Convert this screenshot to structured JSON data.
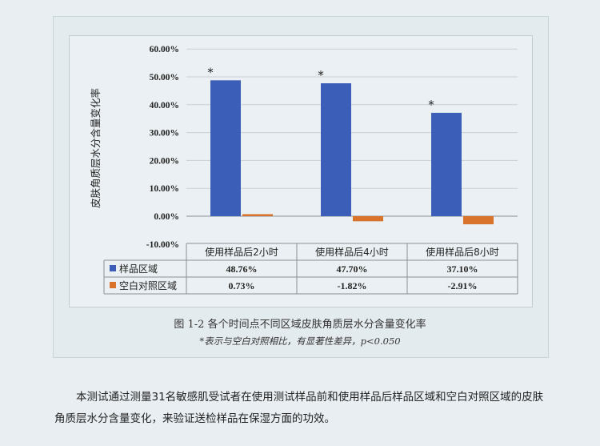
{
  "chart_data": {
    "type": "bar",
    "ylabel": "皮肤角质层水分含量变化率",
    "ylim": [
      -0.1,
      0.6
    ],
    "yticks": [
      "60.00%",
      "50.00%",
      "40.00%",
      "30.00%",
      "20.00%",
      "10.00%",
      "0.00%",
      "-10.00%"
    ],
    "categories": [
      "使用样品后2小时",
      "使用样品后4小时",
      "使用样品后8小时"
    ],
    "series": [
      {
        "name": "样品区域",
        "color": "#3b5fb8",
        "values": [
          0.4876,
          0.477,
          0.371
        ],
        "labels": [
          "48.76%",
          "47.70%",
          "37.10%"
        ]
      },
      {
        "name": "空白对照区域",
        "color": "#d9732b",
        "values": [
          0.0073,
          -0.0182,
          -0.0291
        ],
        "labels": [
          "0.73%",
          "-1.82%",
          "-2.91%"
        ]
      }
    ],
    "annotations": [
      "*",
      "*",
      "*"
    ],
    "grid": true,
    "legend": "data-table"
  },
  "caption": {
    "title": "图 1-2  各个时间点不同区域皮肤角质层水分含量变化率",
    "note": "*表示与空白对照相比，有显著性差异，p<0.050"
  },
  "body": {
    "paragraph": "本测试通过测量31名敏感肌受试者在使用测试样品前和使用样品后样品区域和空白对照区域的皮肤角质层水分含量变化，来验证送检样品在保湿方面的功效。"
  }
}
